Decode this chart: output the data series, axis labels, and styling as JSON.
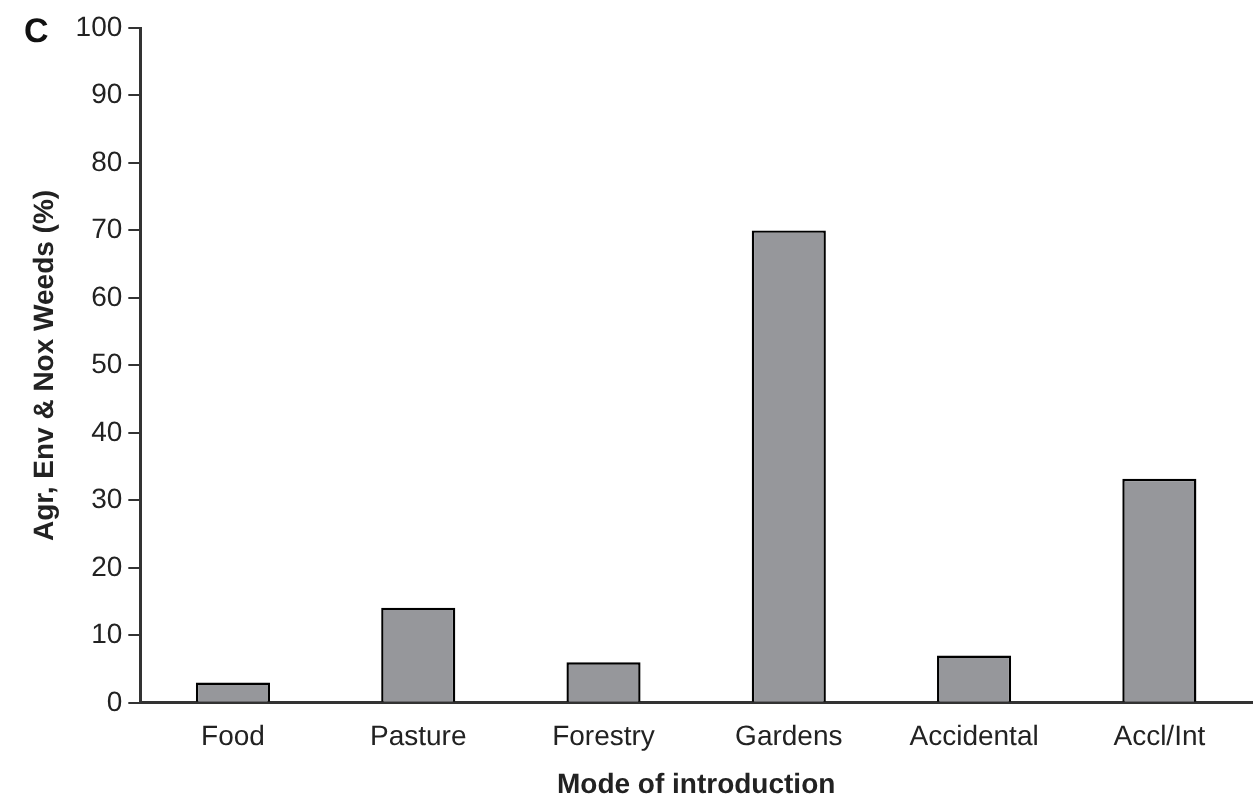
{
  "chart_data": {
    "type": "bar",
    "xlabel": "Mode of introduction",
    "ylabel": "Agr, Env & Nox Weeds (%)",
    "annotations": [
      "C"
    ],
    "categories": [
      "Food",
      "Pasture",
      "Forestry",
      "Gardens",
      "Accidental",
      "Accl/Int"
    ],
    "values": [
      3,
      14.1,
      6,
      70,
      7,
      33.2
    ],
    "color": "#96979b",
    "ylim": [
      0,
      100
    ],
    "yticks": [
      0,
      10,
      20,
      30,
      40,
      50,
      60,
      70,
      80,
      90,
      100
    ],
    "grid": false,
    "legend": false
  }
}
